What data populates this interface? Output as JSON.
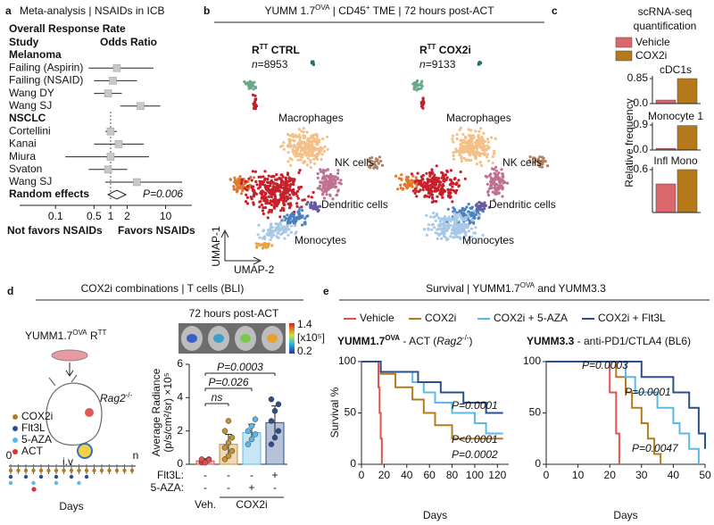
{
  "panel_labels": [
    "a",
    "b",
    "c",
    "d",
    "e"
  ],
  "umap": {
    "title": {
      "parts": [
        {
          "text": "YUMM 1.7"
        },
        {
          "text": "OVA",
          "sup": true
        },
        {
          "text": " | CD45"
        },
        {
          "text": "+",
          "sup": true
        },
        {
          "text": " TME | 72 hours post-ACT"
        }
      ]
    },
    "plots": [
      {
        "title": {
          "parts": [
            {
              "text": "R",
              "bold": true
            },
            {
              "text": "TT",
              "sup": true,
              "bold": true
            },
            {
              "text": " CTRL",
              "bold": true
            }
          ]
        },
        "n": {
          "parts": [
            {
              "text": "n",
              "italic": true
            },
            {
              "text": "=8953"
            }
          ]
        }
      },
      {
        "title": {
          "parts": [
            {
              "text": "R",
              "bold": true
            },
            {
              "text": "TT",
              "sup": true,
              "bold": true
            },
            {
              "text": " COX2i",
              "bold": true
            }
          ]
        },
        "n": {
          "parts": [
            {
              "text": "n",
              "italic": true
            },
            {
              "text": "=9133"
            }
          ]
        }
      }
    ],
    "clusters": [
      "Macrophages",
      "NK cells",
      "Dendritic cells",
      "Monocytes"
    ],
    "axes": [
      "UMAP-1",
      "UMAP-2"
    ]
  },
  "schematic": {
    "mouse": {
      "parts": [
        {
          "text": "YUMM1.7"
        },
        {
          "text": "OVA",
          "sup": true
        },
        {
          "text": " R"
        },
        {
          "text": "TT",
          "sup": true
        }
      ]
    },
    "host": {
      "parts": [
        {
          "text": "Rag2",
          "italic": true
        },
        {
          "text": "-/-",
          "sup": true
        }
      ]
    },
    "legend": [
      {
        "label": "COX2i",
        "color": "#b47b1e"
      },
      {
        "label": "Flt3L",
        "color": "#2b4f8c"
      },
      {
        "label": "5-AZA",
        "color": "#5cb8e6"
      },
      {
        "label": "ACT",
        "color": "#e0302a"
      }
    ],
    "route": "i.v",
    "axis_start": "0",
    "axis_end": "n",
    "axis_label": "Days"
  },
  "chart_data": [
    {
      "type": "forest",
      "title": "Meta-analysis | NSAIDs in ICB",
      "subtitle": "Overall Response Rate",
      "column_labels": [
        "Study",
        "Odds Ratio"
      ],
      "categories": [
        "Melanoma",
        "Failing (Aspirin)",
        "Failing (NSAID)",
        "Wang DY",
        "Wang SJ",
        "NSCLC",
        "Cortellini",
        "Kanai",
        "Miura",
        "Svaton",
        "Wang SJ"
      ],
      "values": [
        null,
        1.3,
        1.1,
        0.9,
        3.5,
        null,
        1.0,
        1.4,
        1.0,
        0.9,
        3.0
      ],
      "lower": [
        null,
        0.4,
        0.5,
        0.5,
        1.5,
        null,
        0.8,
        0.5,
        0.15,
        0.4,
        0.8
      ],
      "upper": [
        null,
        6,
        3,
        1.6,
        8,
        null,
        1.3,
        4,
        5,
        2,
        20
      ],
      "summary": {
        "label": "Random effects",
        "value": 1.3,
        "lower": 0.9,
        "upper": 1.9,
        "annotation": "P=0.006"
      },
      "reference": 1,
      "log_x": true,
      "xlim": [
        0.03,
        30
      ],
      "xticks": [
        0.1,
        0.5,
        1,
        2,
        10
      ],
      "x_labels": [
        "Not favors NSAIDs",
        "Favors NSAIDs"
      ],
      "color": "#c8c8c8"
    },
    {
      "type": "facet-bar",
      "title": [
        "scRNA-seq",
        "quantification"
      ],
      "ylabel": "Relative frequency",
      "series": [
        {
          "name": "Vehicle",
          "color": "#d9676c"
        },
        {
          "name": "COX2i",
          "color": "#b5791a"
        }
      ],
      "facets": [
        {
          "title": "cDC1s",
          "values": [
            0.12,
            0.85
          ],
          "ylim": [
            0,
            0.85
          ],
          "yticks": [
            {
              "value": 0,
              "label": "0.0"
            },
            0.85
          ]
        },
        {
          "title": "Monocyte 1",
          "values": [
            0.06,
            0.88
          ],
          "ylim": [
            0,
            0.9
          ],
          "yticks": [
            {
              "value": 0,
              "label": "0.0"
            },
            0.9
          ]
        },
        {
          "title": "Infl Mono",
          "values": [
            0.4,
            0.6
          ],
          "ylim": [
            0,
            0.6
          ],
          "yticks": [
            0.6
          ]
        }
      ]
    },
    {
      "type": "bar-dot",
      "title": "COX2i combinations | T cells (BLI)",
      "image_title": "72 hours post-ACT",
      "colorbar": {
        "max": 1.4,
        "min": 0.2,
        "unit": "[x10⁵]"
      },
      "ylabel": [
        "Average Radiance",
        "(p/s/cm²/sr) ×10⁵"
      ],
      "categories": [
        null,
        null,
        null,
        null
      ],
      "values": [
        0.2,
        1.2,
        1.9,
        2.5
      ],
      "errors": [
        0.1,
        0.6,
        0.5,
        1.0
      ],
      "points": [
        [
          0.1,
          0.2,
          0.3,
          0.2,
          0.15,
          0.25,
          0.3,
          0.1
        ],
        [
          0.3,
          0.5,
          0.8,
          1.0,
          1.3,
          1.6,
          2.0,
          2.6
        ],
        [
          1.2,
          1.5,
          1.8,
          2.0,
          2.3,
          2.7
        ],
        [
          1.2,
          1.6,
          2.0,
          2.6,
          3.2,
          3.6,
          3.9
        ]
      ],
      "colors": [
        "#e0524f",
        "#c8902e",
        "#5cb8e6",
        "#2b4f8c"
      ],
      "ylim": [
        0,
        6
      ],
      "yticks": [
        0,
        2,
        4,
        6
      ],
      "comparisons": [
        {
          "label": "P=0.0003",
          "from": 0,
          "to": 3
        },
        {
          "label": "P=0.026",
          "from": 0,
          "to": 2
        },
        {
          "label": "ns",
          "from": 0,
          "to": 1
        }
      ],
      "treatment_rows": [
        {
          "label": "Flt3L:",
          "marks": [
            "-",
            "-",
            "-",
            "+"
          ]
        },
        {
          "label": "5-AZA:",
          "marks": [
            "-",
            "-",
            "+",
            "-"
          ]
        }
      ],
      "group_labels": [
        "Veh.",
        "COX2i"
      ]
    },
    {
      "type": "survival",
      "title": {
        "parts": [
          {
            "text": "Survival | YUMM1.7"
          },
          {
            "text": "OVA",
            "sup": true
          },
          {
            "text": " and YUMM3.3"
          }
        ]
      },
      "series": [
        {
          "name": "Vehicle",
          "color": "#e0524f"
        },
        {
          "name": "COX2i",
          "color": "#b47b1e"
        },
        {
          "name": "COX2i + 5-AZA",
          "color": "#5cb8e6"
        },
        {
          "name": "COX2i + Flt3L",
          "color": "#2b4f8c"
        }
      ],
      "xlabel": "Days",
      "ylabel": "Survival %",
      "ylim": [
        0,
        100
      ],
      "yticks": [
        0,
        50,
        100
      ],
      "facets": [
        {
          "title": {
            "parts": [
              {
                "text": "YUMM1.7",
                "bold": true
              },
              {
                "text": "OVA",
                "sup": true,
                "bold": true
              },
              {
                "text": " - ACT ("
              },
              {
                "text": "Rag2",
                "italic": true
              },
              {
                "text": "-/-",
                "sup": true
              },
              {
                "text": ")"
              }
            ]
          },
          "xlim": [
            0,
            130
          ],
          "xticks": [
            0,
            20,
            40,
            60,
            80,
            100,
            120
          ],
          "data": [
            {
              "x": [
                0,
                14,
                15,
                16,
                17,
                18
              ],
              "values": [
                100,
                100,
                75,
                50,
                25,
                0
              ]
            },
            {
              "x": [
                0,
                17,
                30,
                45,
                55,
                65,
                80,
                125
              ],
              "values": [
                100,
                88,
                75,
                63,
                50,
                38,
                25,
                25
              ]
            },
            {
              "x": [
                0,
                17,
                45,
                55,
                65,
                80,
                100,
                110,
                125
              ],
              "values": [
                100,
                90,
                80,
                70,
                60,
                50,
                40,
                30,
                30
              ]
            },
            {
              "x": [
                0,
                17,
                50,
                70,
                90,
                110,
                125
              ],
              "values": [
                100,
                90,
                80,
                70,
                60,
                50,
                50
              ]
            }
          ],
          "annotations": [
            "P=0.0001",
            "P<0.0001",
            "P=0.0002"
          ]
        },
        {
          "title": {
            "parts": [
              {
                "text": "YUMM3.3",
                "bold": true
              },
              {
                "text": " - anti-PD1/CTLA4 (BL6)"
              }
            ]
          },
          "xlim": [
            0,
            50
          ],
          "xticks": [
            0,
            10,
            20,
            30,
            40,
            50
          ],
          "data": [
            {
              "x": [
                0,
                18,
                20,
                22,
                23
              ],
              "values": [
                100,
                100,
                70,
                30,
                0
              ]
            },
            {
              "x": [
                0,
                20,
                22,
                25,
                27,
                30,
                32,
                34,
                36
              ],
              "values": [
                100,
                100,
                85,
                70,
                55,
                40,
                25,
                10,
                0
              ]
            },
            {
              "x": [
                0,
                20,
                25,
                28,
                35,
                40,
                42,
                45,
                48
              ],
              "values": [
                100,
                100,
                85,
                70,
                55,
                40,
                30,
                15,
                0
              ]
            },
            {
              "x": [
                0,
                25,
                30,
                40,
                45,
                48,
                50
              ],
              "values": [
                100,
                100,
                85,
                70,
                55,
                30,
                15
              ]
            }
          ],
          "annotations": [
            "P=0.0003",
            "P=0.0001",
            "P=0.0047"
          ]
        }
      ]
    }
  ]
}
